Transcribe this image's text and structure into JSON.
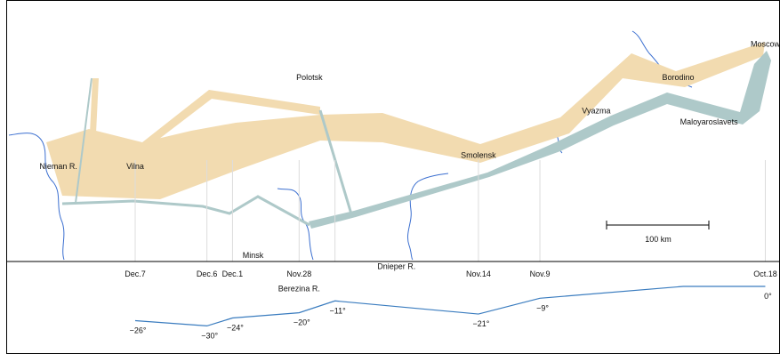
{
  "chart_data": {
    "type": "flow-map",
    "colors": {
      "advance": "#f2dbb0",
      "retreat": "#aec9c9",
      "temperature": "#3a7cbf",
      "river": "#3b6fd0"
    },
    "cities": [
      {
        "name": "Moscow",
        "lon": 37.6,
        "lat": 55.8
      },
      {
        "name": "Borodino",
        "lon": 35.9,
        "lat": 55.5
      },
      {
        "name": "Polotsk",
        "lon": 28.7,
        "lat": 55.5
      },
      {
        "name": "Vyazma",
        "lon": 34.3,
        "lat": 55.2
      },
      {
        "name": "Maloyaroslavets",
        "lon": 36.5,
        "lat": 55.1
      },
      {
        "name": "Smolensk",
        "lon": 32.0,
        "lat": 54.8
      },
      {
        "name": "Vilna",
        "lon": 25.3,
        "lat": 54.7
      },
      {
        "name": "Nieman R.",
        "lon": 23.8,
        "lat": 54.7
      },
      {
        "name": "Minsk",
        "lon": 27.6,
        "lat": 53.9
      },
      {
        "name": "Dnieper R.",
        "lon": 30.4,
        "lat": 53.8
      },
      {
        "name": "Berezina R.",
        "lon": 28.5,
        "lat": 53.6
      }
    ],
    "scale_bar_label": "100 km",
    "temperature": [
      {
        "date": "Oct.18",
        "temp": "0°",
        "lon": 37.6,
        "value": 0
      },
      {
        "date": "",
        "temp": "",
        "lon": 36.0,
        "value": 0
      },
      {
        "date": "Nov.9",
        "temp": "−9°",
        "lon": 33.2,
        "value": -9
      },
      {
        "date": "Nov.14",
        "temp": "−21°",
        "lon": 32.0,
        "value": -21
      },
      {
        "date": "",
        "temp": "−11°",
        "lon": 29.2,
        "value": -11
      },
      {
        "date": "Nov.28",
        "temp": "−20°",
        "lon": 28.5,
        "value": -20
      },
      {
        "date": "Dec.1",
        "temp": "−24°",
        "lon": 27.2,
        "value": -24
      },
      {
        "date": "Dec.6",
        "temp": "−30°",
        "lon": 26.7,
        "value": -30
      },
      {
        "date": "Dec.7",
        "temp": "−26°",
        "lon": 25.3,
        "value": -26
      }
    ]
  }
}
